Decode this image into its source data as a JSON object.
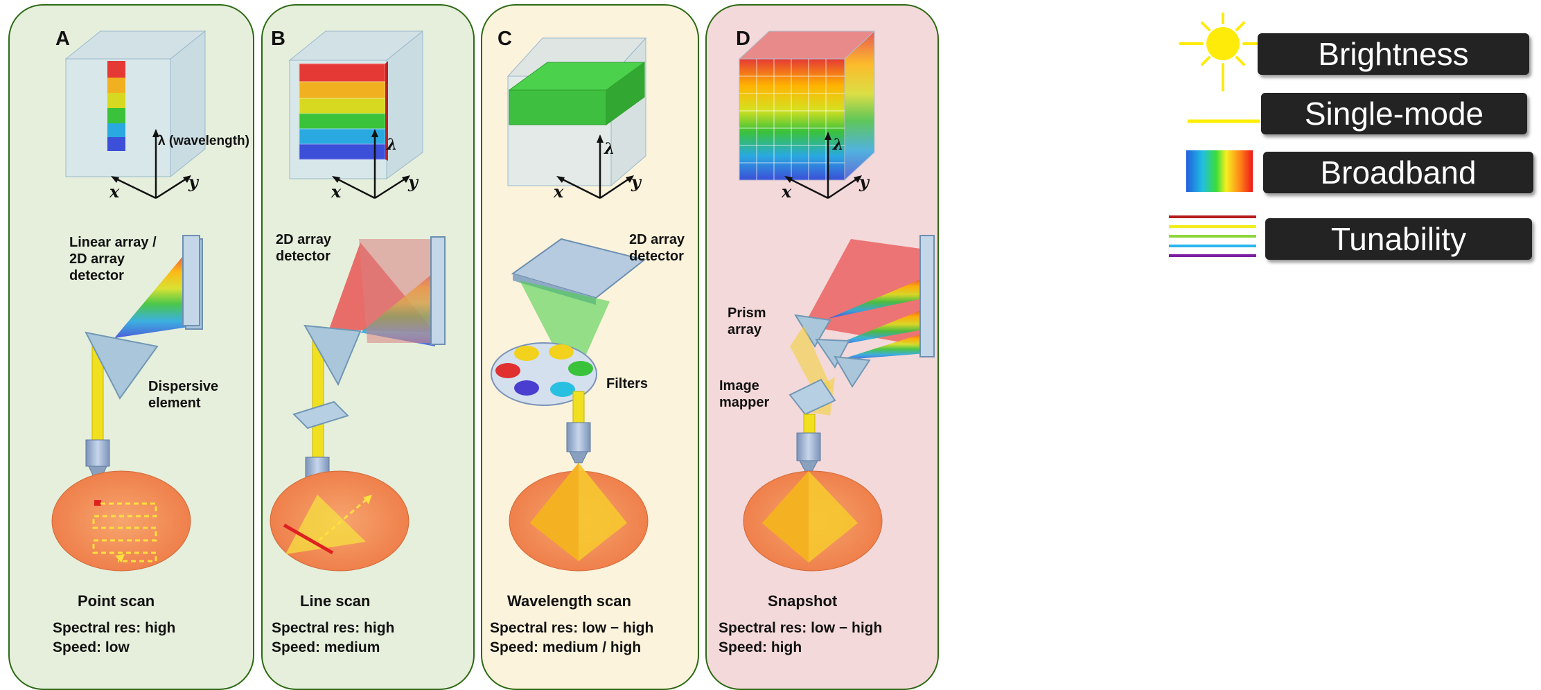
{
  "panels": [
    {
      "letter": "A",
      "title": "Point scan",
      "spectral": "Spectral res: high",
      "speed": "Speed: low",
      "bg": "#e6efdc",
      "labels": {
        "axis_lambda": "λ (wavelength)",
        "x": "x",
        "y": "y",
        "detector": "Linear array /\n2D array\ndetector",
        "element": "Dispersive\nelement"
      }
    },
    {
      "letter": "B",
      "title": "Line scan",
      "spectral": "Spectral res: high",
      "speed": "Speed: medium",
      "bg": "#e6efdc",
      "labels": {
        "axis_lambda": "λ",
        "x": "x",
        "y": "y",
        "detector": "2D array\ndetector"
      }
    },
    {
      "letter": "C",
      "title": "Wavelength scan",
      "spectral": "Spectral res: low − high",
      "speed": "Speed: medium / high",
      "bg": "#fcf3dc",
      "labels": {
        "axis_lambda": "λ",
        "x": "x",
        "y": "y",
        "detector": "2D array\ndetector",
        "filters": "Filters"
      }
    },
    {
      "letter": "D",
      "title": "Snapshot",
      "spectral": "Spectral res: low − high",
      "speed": "Speed: high",
      "bg": "#f4d9da",
      "labels": {
        "axis_lambda": "λ",
        "x": "x",
        "y": "y",
        "prism": "Prism\narray",
        "mapper": "Image\nmapper"
      }
    }
  ],
  "legend": [
    {
      "label": "Brightness",
      "icon": "sun-icon"
    },
    {
      "label": "Single-mode",
      "icon": "single-line-icon"
    },
    {
      "label": "Broadband",
      "icon": "spectrum-swatch-icon"
    },
    {
      "label": "Tunability",
      "icon": "multi-line-icon"
    }
  ],
  "colors": {
    "panel_border": "#2c6a12",
    "beam": "#f0e020",
    "specimen": "#f08a55",
    "legend_box": "#232323"
  }
}
